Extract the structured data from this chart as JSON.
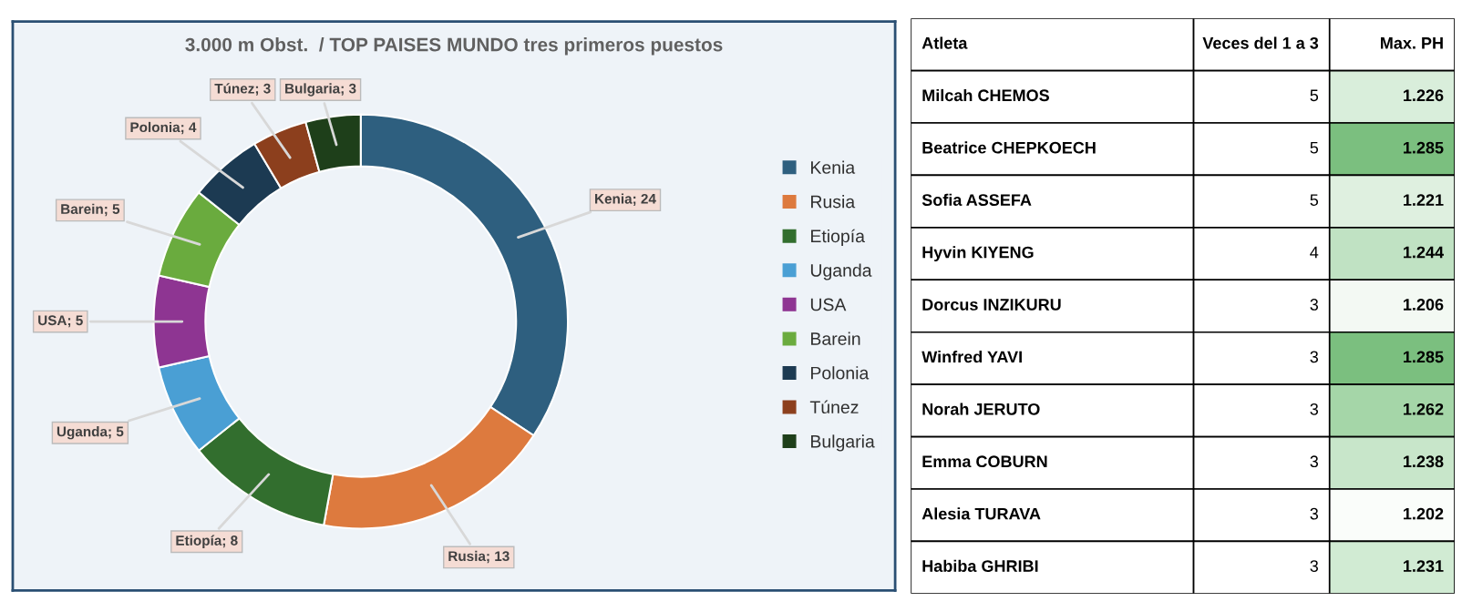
{
  "chart_data": [
    {
      "type": "donut",
      "title": "3.000 m Obst.  / TOP PAISES MUNDO tres primeros puestos",
      "categories": [
        "Kenia",
        "Rusia",
        "Etiopía",
        "Uganda",
        "USA",
        "Barein",
        "Polonia",
        "Túnez",
        "Bulgaria"
      ],
      "values": [
        24,
        13,
        8,
        5,
        5,
        5,
        4,
        3,
        3
      ],
      "colors": [
        "#2e5f7f",
        "#dd7a3e",
        "#326e2e",
        "#4a9fd4",
        "#8e3592",
        "#6aab3e",
        "#1c3a52",
        "#8c3f1d",
        "#1e3f1a"
      ],
      "value_labels": [
        "Kenia; 24",
        "Rusia; 13",
        "Etiopía; 8",
        "Uganda; 5",
        "USA; 5",
        "Barein; 5",
        "Polonia; 4",
        "Túnez; 3",
        "Bulgaria; 3"
      ],
      "legend": "right"
    },
    {
      "type": "other",
      "ylabel": "Atleta",
      "data_labels": true,
      "categories": [
        "Milcah CHEMOS",
        "Beatrice CHEPKOECH",
        "Sofia ASSEFA",
        "Hyvin KIYENG",
        "Dorcus INZIKURU",
        "Winfred YAVI",
        "Norah JERUTO",
        "Emma COBURN",
        "Alesia TURAVA",
        "Habiba GHRIBI"
      ],
      "series": [
        {
          "name": "Veces del 1 a 3",
          "values": [
            5,
            5,
            5,
            4,
            3,
            3,
            3,
            3,
            3,
            3
          ]
        },
        {
          "name": "Max. PH",
          "values": [
            1226,
            1285,
            1221,
            1244,
            1206,
            1285,
            1262,
            1238,
            1202,
            1231
          ],
          "value_labels": [
            "1.226",
            "1.285",
            "1.221",
            "1.244",
            "1.206",
            "1.285",
            "1.262",
            "1.238",
            "1.202",
            "1.231"
          ],
          "colors": [
            "#d9eedb",
            "#7bbf7f",
            "#dff0e0",
            "#c0e2c3",
            "#f3f9f3",
            "#7bbf7f",
            "#a5d6a8",
            "#c8e6ca",
            "#fafdfa",
            "#d1ebd3"
          ]
        }
      ]
    }
  ]
}
